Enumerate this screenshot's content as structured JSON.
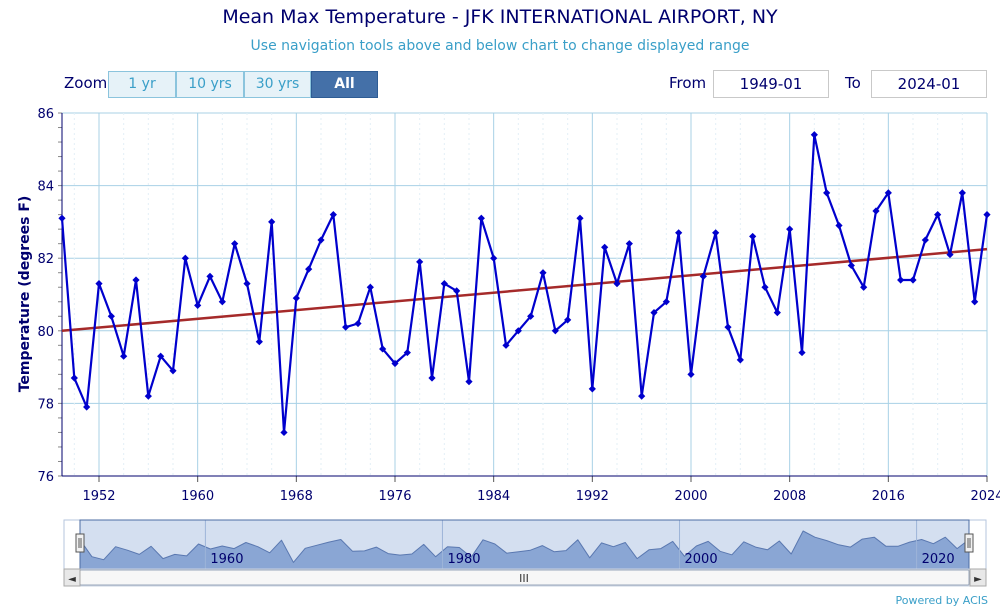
{
  "header": {
    "title": "Mean Max Temperature - JFK INTERNATIONAL AIRPORT, NY",
    "subtitle": "Use navigation tools above and below chart to change displayed range"
  },
  "zoom": {
    "label": "Zoom",
    "buttons": [
      "1 yr",
      "10 yrs",
      "30 yrs",
      "All"
    ],
    "active": "All"
  },
  "range": {
    "from_label": "From",
    "from_value": "1949-01",
    "to_label": "To",
    "to_value": "2024-01"
  },
  "navigator": {
    "labels": [
      "1960",
      "1980",
      "2000",
      "2020"
    ],
    "scroll_glyph": "III",
    "left_arrow": "◄",
    "right_arrow": "►"
  },
  "credit": "Powered by ACIS",
  "colors": {
    "series": "#0000cd",
    "trend": "#a52a2a",
    "grid": "#a8d1e6",
    "navigator_fill": "#8aa6d4",
    "navigator_mask": "#cfdcee"
  },
  "chart_data": {
    "type": "line",
    "title": "Mean Max Temperature - JFK INTERNATIONAL AIRPORT, NY",
    "ylabel": "Temperature (degrees F)",
    "xlabel": "",
    "ylim": [
      76,
      86
    ],
    "xlim": [
      1949,
      2024
    ],
    "x_ticks": [
      1952,
      1960,
      1968,
      1976,
      1984,
      1992,
      2000,
      2008,
      2016,
      2024
    ],
    "y_ticks": [
      76,
      78,
      80,
      82,
      84,
      86
    ],
    "grid": true,
    "series": [
      {
        "x": [
          1949,
          1950,
          1951,
          1952,
          1953,
          1954,
          1955,
          1956,
          1957,
          1958,
          1959,
          1960,
          1961,
          1962,
          1963,
          1964,
          1965,
          1966,
          1967,
          1968,
          1969,
          1970,
          1971,
          1972,
          1973,
          1974,
          1975,
          1976,
          1977,
          1978,
          1979,
          1980,
          1981,
          1982,
          1983,
          1984,
          1985,
          1986,
          1987,
          1988,
          1989,
          1990,
          1991,
          1992,
          1993,
          1994,
          1995,
          1996,
          1997,
          1998,
          1999,
          2000,
          2001,
          2002,
          2003,
          2004,
          2005,
          2006,
          2007,
          2008,
          2009,
          2010,
          2011,
          2012,
          2013,
          2014,
          2015,
          2016,
          2017,
          2018,
          2019,
          2020,
          2021,
          2022,
          2023,
          2024
        ],
        "values": [
          83.1,
          78.7,
          77.9,
          81.3,
          80.4,
          79.3,
          81.4,
          78.2,
          79.3,
          78.9,
          82.0,
          80.7,
          81.5,
          80.8,
          82.4,
          81.3,
          79.7,
          83.0,
          77.2,
          80.9,
          81.7,
          82.5,
          83.2,
          80.1,
          80.2,
          81.2,
          79.5,
          79.1,
          79.4,
          81.9,
          78.7,
          81.3,
          81.1,
          78.6,
          83.1,
          82.0,
          79.6,
          80.0,
          80.4,
          81.6,
          80.0,
          80.3,
          83.1,
          78.4,
          82.3,
          81.3,
          82.4,
          78.2,
          80.5,
          80.8,
          82.7,
          78.8,
          81.5,
          82.7,
          80.1,
          79.2,
          82.6,
          81.2,
          80.5,
          82.8,
          79.4,
          85.4,
          83.8,
          82.9,
          81.8,
          81.2,
          83.3,
          83.8,
          81.4,
          81.4,
          82.5,
          83.2,
          82.1,
          83.8,
          80.8,
          83.2
        ]
      },
      {
        "type": "trend",
        "x": [
          1949,
          2024
        ],
        "values": [
          80.0,
          82.25
        ]
      }
    ]
  }
}
